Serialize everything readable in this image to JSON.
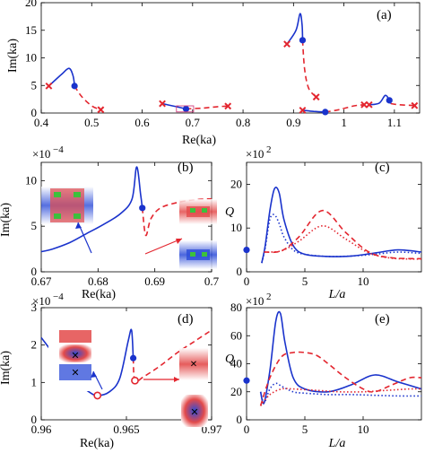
{
  "colors": {
    "blue": "#1a33cc",
    "red": "#e3262f",
    "axis": "#000000",
    "field_blue": "#2b4bd8",
    "field_red": "#e34a4a"
  },
  "chart_data": [
    {
      "panel_label": "(a)",
      "type": "line",
      "xlabel": "Re(ka)",
      "ylabel": "Im(ka)",
      "xlim": [
        0.4,
        1.15
      ],
      "ylim": [
        0,
        20
      ],
      "xticks": [
        0.4,
        0.5,
        0.6,
        0.7,
        0.8,
        0.9,
        1,
        1.1
      ],
      "xtick_labels": [
        "0.4",
        "0.5",
        "0.6",
        "0.7",
        "0.8",
        "0.9",
        "1",
        "1.1"
      ],
      "yticks": [
        0,
        5,
        10,
        15,
        20
      ],
      "ytick_labels": [
        "0",
        "5",
        "10",
        "15",
        "20"
      ],
      "series": [
        {
          "color": "blue",
          "style": "solid",
          "x": [
            0.415,
            0.44,
            0.455,
            0.463,
            0.466
          ],
          "y": [
            4.9,
            7.0,
            8.1,
            6.8,
            4.9
          ]
        },
        {
          "color": "red",
          "style": "dashed",
          "x": [
            0.466,
            0.48,
            0.5,
            0.518
          ],
          "y": [
            4.9,
            3.0,
            1.3,
            0.6
          ]
        },
        {
          "color": "blue",
          "style": "solid",
          "x": [
            0.64,
            0.66,
            0.68,
            0.687
          ],
          "y": [
            1.7,
            1.3,
            0.9,
            0.75
          ]
        },
        {
          "color": "red",
          "style": "dashed",
          "x": [
            0.687,
            0.72,
            0.75,
            0.77
          ],
          "y": [
            0.75,
            0.9,
            1.15,
            1.25
          ]
        },
        {
          "color": "blue",
          "style": "solid",
          "x": [
            0.887,
            0.905,
            0.913,
            0.917,
            0.918
          ],
          "y": [
            12.5,
            15.0,
            18.0,
            16.0,
            13.2
          ]
        },
        {
          "color": "red",
          "style": "dashed",
          "x": [
            0.918,
            0.922,
            0.93,
            0.945
          ],
          "y": [
            13.2,
            8.0,
            4.5,
            2.9
          ]
        },
        {
          "color": "blue",
          "style": "solid",
          "x": [
            0.918,
            0.94,
            0.963
          ],
          "y": [
            0.5,
            0.3,
            0.18
          ]
        },
        {
          "color": "red",
          "style": "dashed",
          "x": [
            0.963,
            0.99,
            1.02,
            1.04
          ],
          "y": [
            0.18,
            0.6,
            1.3,
            1.5
          ]
        },
        {
          "color": "blue",
          "style": "solid",
          "x": [
            1.05,
            1.07,
            1.082,
            1.09,
            1.093
          ],
          "y": [
            1.5,
            1.8,
            3.2,
            2.3,
            1.7
          ]
        },
        {
          "color": "red",
          "style": "dashed",
          "x": [
            1.093,
            1.11,
            1.14
          ],
          "y": [
            1.7,
            1.5,
            1.35
          ]
        }
      ],
      "circles": [
        {
          "x": 0.466,
          "y": 4.9
        },
        {
          "x": 0.687,
          "y": 0.75
        },
        {
          "x": 0.918,
          "y": 13.2
        },
        {
          "x": 0.963,
          "y": 0.18
        },
        {
          "x": 1.09,
          "y": 2.3
        }
      ],
      "crosses": [
        {
          "x": 0.415,
          "y": 4.9
        },
        {
          "x": 0.518,
          "y": 0.6
        },
        {
          "x": 0.64,
          "y": 1.7
        },
        {
          "x": 0.77,
          "y": 1.25
        },
        {
          "x": 0.887,
          "y": 12.5
        },
        {
          "x": 0.945,
          "y": 2.9
        },
        {
          "x": 0.918,
          "y": 0.5
        },
        {
          "x": 1.04,
          "y": 1.5
        },
        {
          "x": 1.05,
          "y": 1.5
        },
        {
          "x": 1.14,
          "y": 1.35
        }
      ]
    },
    {
      "panel_label": "(b)",
      "type": "line",
      "xlabel": "Re(ka)",
      "ylabel": "Im(ka)",
      "multiplier": "×10^-4",
      "xlim": [
        0.67,
        0.7
      ],
      "ylim": [
        0,
        12
      ],
      "xticks": [
        0.67,
        0.68,
        0.69,
        0.7
      ],
      "xtick_labels": [
        "0.67",
        "0.68",
        "0.69",
        "0.7"
      ],
      "yticks": [
        0,
        5,
        10
      ],
      "ytick_labels": [
        "0",
        "5",
        "10"
      ],
      "series": [
        {
          "color": "blue",
          "style": "solid",
          "x": [
            0.67,
            0.672,
            0.675,
            0.678,
            0.681,
            0.684,
            0.686,
            0.6868,
            0.6875,
            0.6878
          ],
          "y": [
            2.2,
            2.5,
            3.2,
            4.2,
            5.2,
            6.4,
            8.0,
            11.5,
            8.5,
            7.0
          ]
        },
        {
          "color": "red",
          "style": "dashed",
          "x": [
            0.6878,
            0.6884,
            0.6893,
            0.691,
            0.694,
            0.697,
            0.7
          ],
          "y": [
            7.0,
            4.0,
            5.8,
            7.0,
            7.6,
            7.9,
            8.0
          ]
        }
      ],
      "circles": [
        {
          "x": 0.6878,
          "y": 7.0
        }
      ]
    },
    {
      "panel_label": "(c)",
      "type": "line",
      "xlabel": "L/a",
      "ylabel": "Q",
      "multiplier": "×10^2",
      "xlim": [
        0,
        15
      ],
      "ylim": [
        0,
        25
      ],
      "xticks": [
        0,
        5,
        10
      ],
      "xtick_labels": [
        "0",
        "5",
        "10"
      ],
      "yticks": [
        0,
        10,
        20
      ],
      "ytick_labels": [
        "0",
        "10",
        "20"
      ],
      "series": [
        {
          "color": "blue",
          "style": "solid",
          "x": [
            1.3,
            1.6,
            2.0,
            2.4,
            2.8,
            3.2,
            4.0,
            5.0,
            7.0,
            9.0,
            11.0,
            13.0,
            15.0
          ],
          "y": [
            2.0,
            6.0,
            14.0,
            19.0,
            18.0,
            12.0,
            6.0,
            4.0,
            3.5,
            3.6,
            4.3,
            5.0,
            4.5
          ]
        },
        {
          "color": "blue",
          "style": "dotted",
          "x": [
            1.3,
            1.6,
            2.0,
            2.4,
            2.8,
            3.2,
            4.0,
            5.0,
            7.0,
            9.0,
            11.0,
            13.0,
            15.0
          ],
          "y": [
            2.0,
            5.5,
            12.0,
            13.0,
            11.0,
            8.0,
            5.0,
            4.0,
            3.5,
            3.6,
            4.0,
            4.5,
            4.2
          ]
        },
        {
          "color": "red",
          "style": "dashed",
          "x": [
            1.5,
            3.0,
            4.5,
            6.5,
            8.5,
            10.5,
            12.5,
            15.0
          ],
          "y": [
            4.5,
            4.8,
            8.0,
            14.0,
            9.0,
            4.5,
            3.2,
            3.0
          ]
        },
        {
          "color": "red",
          "style": "dotted",
          "x": [
            1.5,
            3.0,
            4.5,
            6.5,
            8.5,
            10.5,
            12.5,
            15.0
          ],
          "y": [
            4.5,
            4.8,
            7.0,
            10.5,
            7.5,
            4.3,
            3.1,
            2.9
          ]
        }
      ],
      "circles": [
        {
          "x": 0,
          "y": 5.0
        }
      ]
    },
    {
      "panel_label": "(d)",
      "type": "line",
      "xlabel": "Re(ka)",
      "ylabel": "Im(ka)",
      "multiplier": "×10^-4",
      "xlim": [
        0.96,
        0.97
      ],
      "ylim": [
        0,
        3
      ],
      "xticks": [
        0.96,
        0.965,
        0.97
      ],
      "xtick_labels": [
        "0.96",
        "0.965",
        "0.97"
      ],
      "yticks": [
        0,
        1,
        2,
        3
      ],
      "ytick_labels": [
        "0",
        "1",
        "2",
        "3"
      ],
      "series": [
        {
          "color": "blue",
          "style": "solid",
          "x": [
            0.96,
            0.961,
            0.962,
            0.9628,
            0.9633,
            0.964,
            0.9646,
            0.9651,
            0.9653,
            0.9654
          ],
          "y": [
            2.2,
            1.6,
            1.05,
            0.75,
            0.65,
            0.75,
            1.1,
            2.1,
            2.4,
            1.65
          ]
        },
        {
          "color": "red",
          "style": "dashed",
          "x": [
            0.9654,
            0.9655,
            0.966,
            0.967,
            0.968,
            0.969,
            0.97
          ],
          "y": [
            1.65,
            1.05,
            1.15,
            1.45,
            1.8,
            2.1,
            2.4
          ]
        }
      ],
      "circles": [
        {
          "x": 0.9654,
          "y": 1.65
        }
      ],
      "open_circles": [
        {
          "x": 0.9633,
          "y": 0.65,
          "color": "red"
        },
        {
          "x": 0.9655,
          "y": 1.05,
          "color": "red"
        }
      ]
    },
    {
      "panel_label": "(e)",
      "type": "line",
      "xlabel": "L/a",
      "ylabel": "Q",
      "multiplier": "×10^2",
      "xlim": [
        0,
        15
      ],
      "ylim": [
        0,
        80
      ],
      "xticks": [
        0,
        5,
        10
      ],
      "xtick_labels": [
        "0",
        "5",
        "10"
      ],
      "yticks": [
        0,
        20,
        40,
        60,
        80
      ],
      "ytick_labels": [
        "0",
        "20",
        "40",
        "60",
        "80"
      ],
      "series": [
        {
          "color": "blue",
          "style": "solid",
          "x": [
            1.2,
            1.5,
            2.0,
            2.5,
            2.9,
            3.3,
            4.0,
            5.0,
            7.0,
            9.0,
            11.0,
            13.0,
            15.0
          ],
          "y": [
            20.0,
            12.0,
            35.0,
            70.0,
            76.0,
            55.0,
            30.0,
            22.0,
            20.0,
            25.0,
            32.0,
            27.0,
            22.0
          ]
        },
        {
          "color": "blue",
          "style": "dotted",
          "x": [
            1.2,
            1.5,
            2.0,
            2.5,
            3.0,
            4.0,
            5.0,
            7.0,
            9.0,
            11.0,
            13.0,
            15.0
          ],
          "y": [
            20.0,
            12.0,
            22.0,
            26.0,
            24.0,
            20.0,
            19.0,
            18.0,
            18.0,
            17.5,
            17.0,
            17.0
          ]
        },
        {
          "color": "red",
          "style": "dashed",
          "x": [
            1.2,
            2.0,
            3.0,
            4.0,
            5.0,
            6.0,
            7.0,
            8.5,
            10.0,
            11.0,
            12.5,
            14.0,
            15.0
          ],
          "y": [
            10.0,
            30.0,
            45.0,
            48.0,
            48.0,
            46.0,
            40.0,
            30.0,
            22.0,
            20.0,
            25.0,
            30.0,
            30.0
          ]
        },
        {
          "color": "red",
          "style": "dotted",
          "x": [
            1.2,
            2.0,
            3.0,
            4.0,
            6.0,
            8.0,
            10.0,
            12.0,
            14.0,
            15.0
          ],
          "y": [
            10.0,
            18.0,
            22.0,
            22.0,
            21.0,
            20.0,
            20.0,
            21.0,
            22.0,
            22.0
          ]
        }
      ],
      "circles": [
        {
          "x": 0,
          "y": 28.0
        }
      ]
    }
  ]
}
